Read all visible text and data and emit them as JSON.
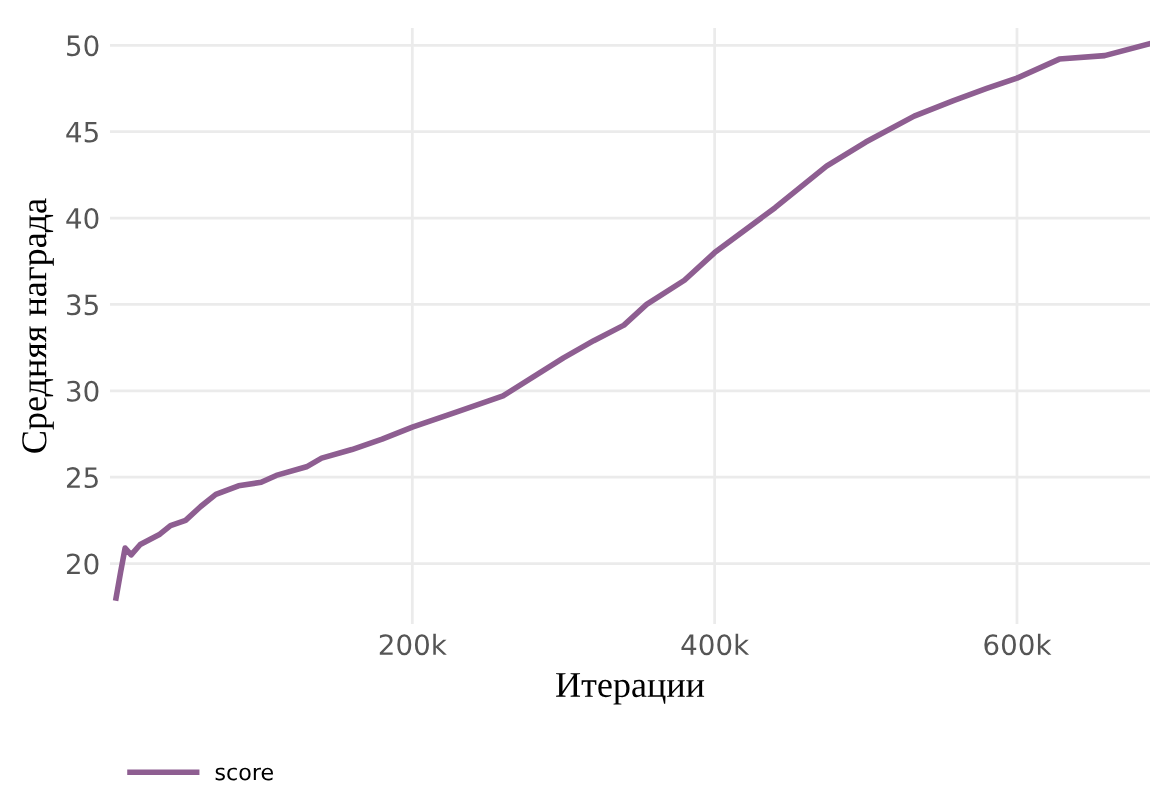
{
  "chart_data": {
    "type": "line",
    "xlabel": "Итерации",
    "ylabel": "Средняя награда",
    "x": [
      4000,
      7000,
      10000,
      14000,
      20000,
      33000,
      40000,
      50000,
      60000,
      70000,
      85000,
      100000,
      110000,
      130000,
      140000,
      160000,
      180000,
      200000,
      230000,
      260000,
      280000,
      300000,
      320000,
      340000,
      355000,
      380000,
      400000,
      440000,
      474000,
      500000,
      532000,
      558000,
      580000,
      600000,
      628000,
      658000,
      688000
    ],
    "series": [
      {
        "name": "score",
        "color": "#8e5e91",
        "values": [
          18.0,
          19.5,
          20.9,
          20.5,
          21.1,
          21.7,
          22.2,
          22.5,
          23.3,
          24.0,
          24.5,
          24.7,
          25.1,
          25.6,
          26.1,
          26.6,
          27.2,
          27.9,
          28.8,
          29.7,
          30.8,
          31.9,
          32.9,
          33.8,
          35.0,
          36.4,
          38.0,
          40.6,
          43.0,
          44.4,
          45.9,
          46.8,
          47.5,
          48.1,
          49.2,
          49.4,
          50.1
        ]
      }
    ],
    "xlim": [
      0,
      688000
    ],
    "ylim": [
      16.5,
      51
    ],
    "xticks": [
      {
        "value": 200000,
        "label": "200k"
      },
      {
        "value": 400000,
        "label": "400k"
      },
      {
        "value": 600000,
        "label": "600k"
      }
    ],
    "yticks": [
      20,
      25,
      30,
      35,
      40,
      45,
      50
    ],
    "grid": true,
    "legend": "bottom left",
    "line_style": "solid",
    "marker": "none"
  }
}
